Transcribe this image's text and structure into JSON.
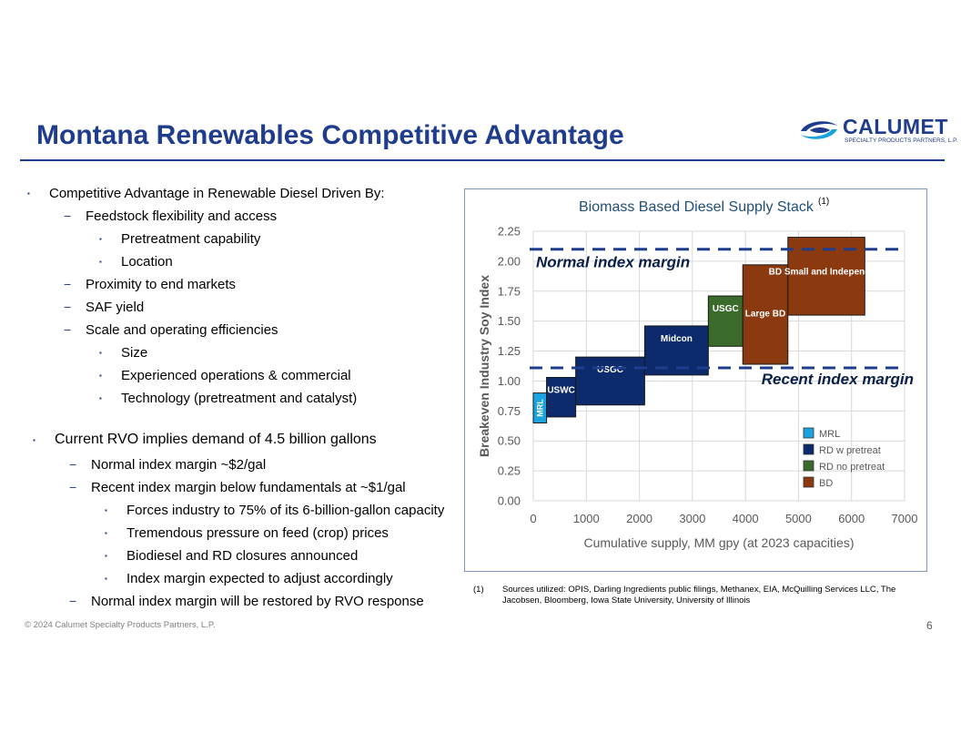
{
  "title": "Montana Renewables Competitive Advantage",
  "logo": {
    "name": "CALUMET",
    "subtitle": "SPECIALTY PRODUCTS PARTNERS, L.P."
  },
  "bullets": [
    {
      "level": 1,
      "text": "Competitive Advantage in Renewable Diesel Driven By:"
    },
    {
      "level": 2,
      "text": "Feedstock flexibility and access"
    },
    {
      "level": 3,
      "text": "Pretreatment capability"
    },
    {
      "level": 3,
      "text": "Location"
    },
    {
      "level": 2,
      "text": "Proximity to end markets"
    },
    {
      "level": 2,
      "text": "SAF yield"
    },
    {
      "level": 2,
      "text": "Scale and operating efficiencies"
    },
    {
      "level": 3,
      "text": "Size"
    },
    {
      "level": 3,
      "text": "Experienced operations & commercial"
    },
    {
      "level": 3,
      "text": "Technology (pretreatment and catalyst)"
    },
    {
      "level": 1,
      "text": "Current RVO implies demand of 4.5 billion gallons"
    },
    {
      "level": 2,
      "text": "Normal index margin ~$2/gal"
    },
    {
      "level": 2,
      "text": "Recent index margin below fundamentals at ~$1/gal"
    },
    {
      "level": 3,
      "text": "Forces industry to 75% of its 6-billion-gallon capacity"
    },
    {
      "level": 3,
      "text": "Tremendous pressure on feed (crop) prices"
    },
    {
      "level": 3,
      "text": "Biodiesel and RD closures announced"
    },
    {
      "level": 3,
      "text": "Index margin expected to adjust accordingly"
    },
    {
      "level": 2,
      "text": "Normal index margin will be restored by RVO response"
    }
  ],
  "chart_data": {
    "type": "bar",
    "title": "Biomass Based Diesel Supply Stack",
    "title_note": "(1)",
    "xlabel": "Cumulative supply, MM gpy (at 2023 capacities)",
    "ylabel": "Breakeven Industry Soy Index",
    "xlim": [
      0,
      7000
    ],
    "ylim": [
      0,
      2.25
    ],
    "x_ticks": [
      0,
      1000,
      2000,
      3000,
      4000,
      5000,
      6000,
      7000
    ],
    "y_ticks": [
      0,
      0.25,
      0.5,
      0.75,
      1.0,
      1.25,
      1.5,
      1.75,
      2.0,
      2.25
    ],
    "y_tick_labels": [
      "0.00",
      "0.25",
      "0.50",
      "0.75",
      "1.00",
      "1.25",
      "1.50",
      "1.75",
      "2.00",
      "2.25"
    ],
    "gridlines": true,
    "colors": {
      "MRL": "#1aa3df",
      "RD w pretreat": "#0c2a6c",
      "RD no pretreat": "#3a6b2a",
      "BD": "#8b3a0f",
      "grid": "#d9d9d9",
      "axis_text": "#595959",
      "title_text": "#1f4e79",
      "dash": "#1f3d8c"
    },
    "legend_position": "right",
    "legend": [
      {
        "label": "MRL",
        "category": "MRL"
      },
      {
        "label": "RD w pretreat",
        "category": "RD w pretreat"
      },
      {
        "label": "RD no pretreat",
        "category": "RD no pretreat"
      },
      {
        "label": "BD",
        "category": "BD"
      }
    ],
    "blocks": [
      {
        "label": "MRL",
        "category": "MRL",
        "x_start": 0,
        "x_end": 250,
        "y_low": 0.65,
        "y_high": 0.9,
        "label_orientation": "vertical"
      },
      {
        "label": "USWC",
        "category": "RD w pretreat",
        "x_start": 250,
        "x_end": 800,
        "y_low": 0.7,
        "y_high": 1.03
      },
      {
        "label": "USGC",
        "category": "RD w pretreat",
        "x_start": 800,
        "x_end": 2100,
        "y_low": 0.8,
        "y_high": 1.2
      },
      {
        "label": "Midcon",
        "category": "RD w pretreat",
        "x_start": 2100,
        "x_end": 3300,
        "y_low": 1.05,
        "y_high": 1.46
      },
      {
        "label": "USGC",
        "category": "RD no pretreat",
        "x_start": 3300,
        "x_end": 3950,
        "y_low": 1.29,
        "y_high": 1.71
      },
      {
        "label": "Large BD",
        "category": "BD",
        "x_start": 3950,
        "x_end": 4800,
        "y_low": 1.14,
        "y_high": 1.97
      },
      {
        "label": "BD Small and Independent",
        "category": "BD",
        "x_start": 4800,
        "x_end": 6250,
        "y_low": 1.55,
        "y_high": 2.2
      }
    ],
    "reference_lines": [
      {
        "label": "Normal index margin",
        "y": 2.1
      },
      {
        "label": "Recent index margin",
        "y": 1.11
      }
    ]
  },
  "footnote": {
    "number": "(1)",
    "text": "Sources utilized:  OPIS, Darling Ingredients public filings, Methanex, EIA, McQuilling Services LLC, The Jacobsen, Bloomberg, Iowa State University, University of Illinois"
  },
  "copyright": "© 2024 Calumet Specialty Products Partners, L.P.",
  "page_number": "6"
}
